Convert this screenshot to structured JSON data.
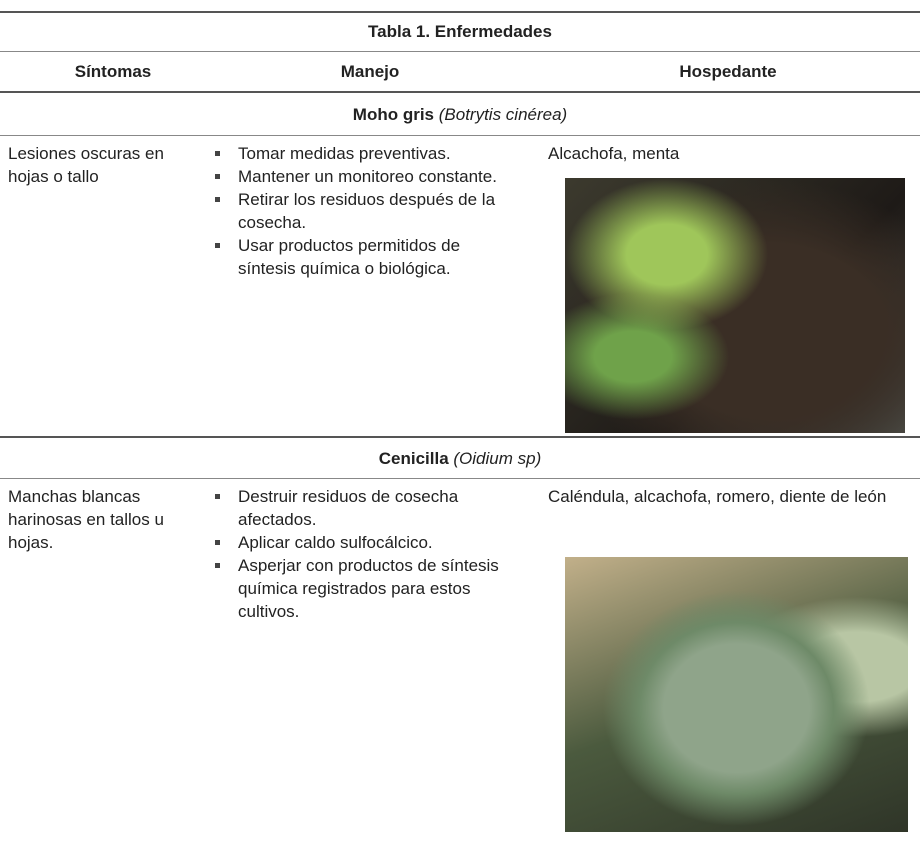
{
  "table": {
    "title": "Tabla 1. Enfermedades",
    "columns": [
      "Síntomas",
      "Manejo",
      "Hospedante"
    ],
    "sections": [
      {
        "name": "Moho gris",
        "scientific_name": "(Botrytis cinérea)",
        "symptoms": "Lesiones oscuras en hojas o tallo",
        "management": [
          "Tomar medidas preventivas.",
          "Mantener un monitoreo constante.",
          "Retirar los residuos después de la cosecha.",
          "Usar productos permitidos de síntesis química o biológica."
        ],
        "host": "Alcachofa, menta"
      },
      {
        "name": "Cenicilla",
        "scientific_name": "(Oidium sp)",
        "symptoms": "Manchas blancas harinosas en tallos u hojas.",
        "management": [
          "Destruir residuos de cosecha afectados.",
          "Aplicar caldo sulfocálcico.",
          "Asperjar con productos de síntesis química registrados para estos cultivos."
        ],
        "host": "Caléndula, alcachofa, romero, diente de león"
      }
    ]
  }
}
